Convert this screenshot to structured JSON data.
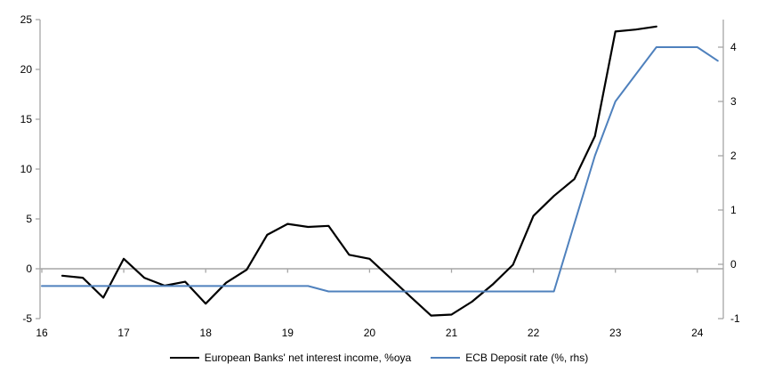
{
  "chart_data": {
    "type": "line",
    "title": "",
    "x_axis": {
      "tick_labels": [
        "16",
        "17",
        "18",
        "19",
        "20",
        "21",
        "22",
        "23",
        "24"
      ],
      "tick_values": [
        16,
        17,
        18,
        19,
        20,
        21,
        22,
        23,
        24
      ],
      "range": [
        16,
        24.33
      ]
    },
    "left_axis": {
      "tick_labels": [
        "25",
        "20",
        "15",
        "10",
        "5",
        "0",
        "-5"
      ],
      "tick_values": [
        25,
        20,
        15,
        10,
        5,
        0,
        -5
      ],
      "range": [
        -5,
        25
      ]
    },
    "right_axis": {
      "tick_labels": [
        "4",
        "3",
        "2",
        "1",
        "0",
        "-1"
      ],
      "tick_values": [
        4,
        3,
        2,
        1,
        0,
        -1
      ],
      "range": [
        -1,
        4.5
      ]
    },
    "grid": "off",
    "zero_line": true,
    "legend_position": "bottom",
    "series": [
      {
        "name": "European Banks' net interest income, %oya",
        "axis": "left",
        "color": "#000000",
        "x": [
          16.25,
          16.5,
          16.75,
          17.0,
          17.25,
          17.5,
          17.75,
          18.0,
          18.25,
          18.5,
          18.75,
          19.0,
          19.25,
          19.5,
          19.75,
          20.0,
          20.25,
          20.5,
          20.75,
          21.0,
          21.25,
          21.5,
          21.75,
          22.0,
          22.25,
          22.5,
          22.75,
          23.0,
          23.25,
          23.5
        ],
        "y": [
          -0.7,
          -0.9,
          -2.9,
          1.0,
          -0.9,
          -1.7,
          -1.3,
          -3.5,
          -1.4,
          -0.1,
          3.4,
          4.5,
          4.2,
          4.3,
          1.4,
          1.0,
          -0.9,
          -2.8,
          -4.7,
          -4.6,
          -3.3,
          -1.6,
          0.4,
          5.3,
          7.3,
          9.0,
          13.3,
          23.8,
          24.0,
          24.3
        ]
      },
      {
        "name": "ECB Deposit rate (%, rhs)",
        "axis": "right",
        "color": "#4F81BD",
        "x": [
          16.0,
          16.25,
          16.5,
          16.75,
          17.0,
          17.25,
          17.5,
          17.75,
          18.0,
          18.25,
          18.5,
          18.75,
          19.0,
          19.25,
          19.5,
          19.75,
          20.0,
          20.25,
          20.5,
          20.75,
          21.0,
          21.25,
          21.5,
          21.75,
          22.0,
          22.25,
          22.5,
          22.75,
          23.0,
          23.25,
          23.5,
          23.75,
          24.0,
          24.25
        ],
        "y": [
          -0.4,
          -0.4,
          -0.4,
          -0.4,
          -0.4,
          -0.4,
          -0.4,
          -0.4,
          -0.4,
          -0.4,
          -0.4,
          -0.4,
          -0.4,
          -0.4,
          -0.5,
          -0.5,
          -0.5,
          -0.5,
          -0.5,
          -0.5,
          -0.5,
          -0.5,
          -0.5,
          -0.5,
          -0.5,
          -0.5,
          0.75,
          2.0,
          3.0,
          3.5,
          4.0,
          4.0,
          4.0,
          3.75
        ]
      }
    ],
    "colors": {
      "axis": "#A6A6A6",
      "zero_line": "#A6A6A6",
      "text": "#000000"
    }
  }
}
